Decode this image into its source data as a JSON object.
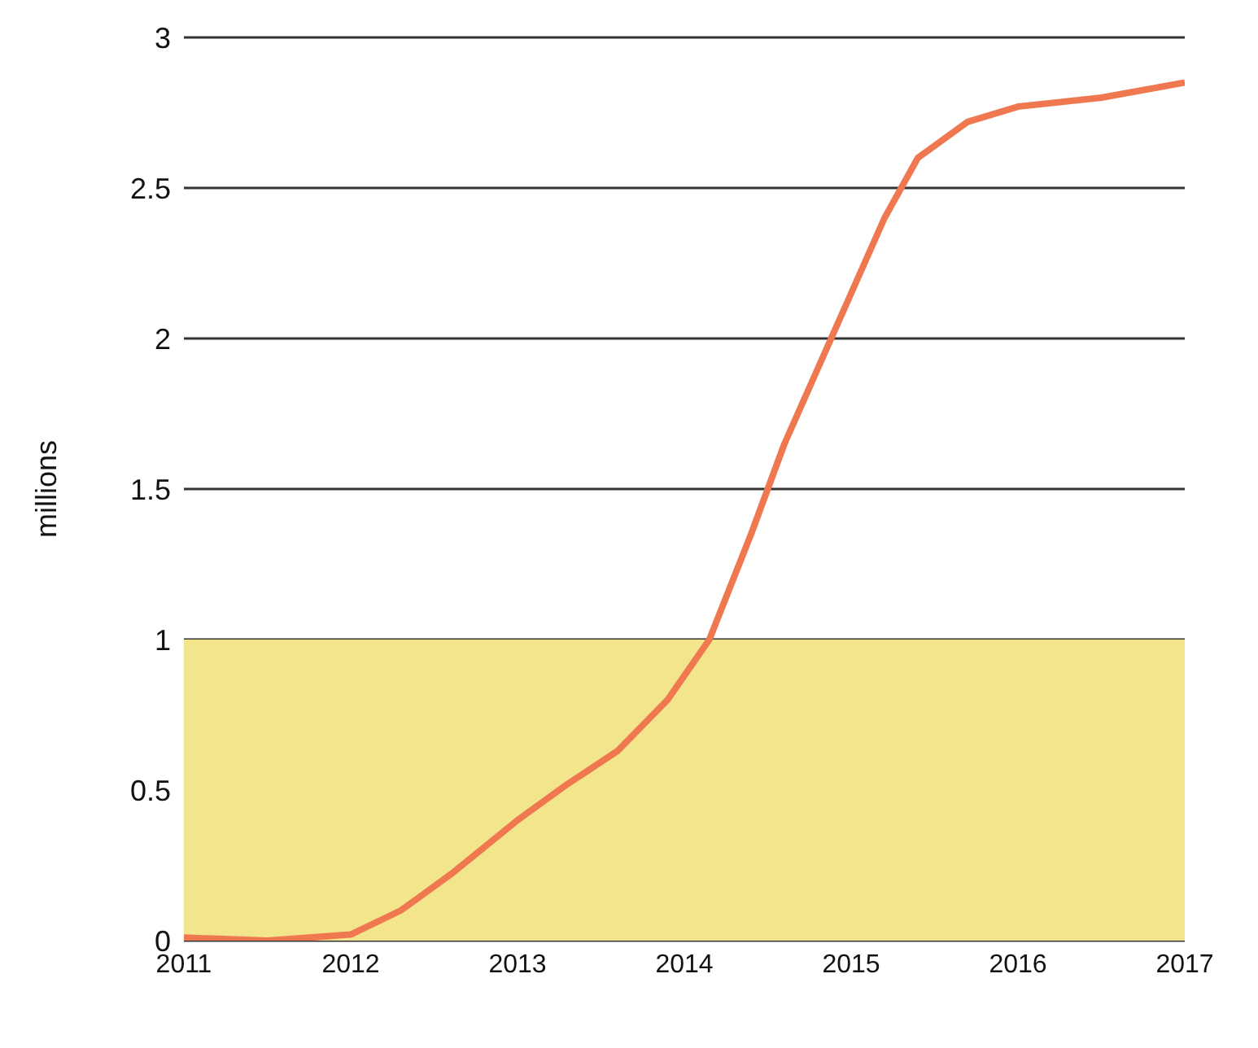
{
  "chart_data": {
    "type": "line",
    "ylabel": "millions",
    "x": [
      2011,
      2011.5,
      2012,
      2012.3,
      2012.6,
      2013,
      2013.3,
      2013.6,
      2013.9,
      2014.15,
      2014.4,
      2014.6,
      2014.8,
      2015,
      2015.2,
      2015.4,
      2015.7,
      2016,
      2016.5,
      2017
    ],
    "series": [
      {
        "color": "#f07850",
        "values": [
          0.01,
          0,
          0.02,
          0.1,
          0.22,
          0.4,
          0.52,
          0.63,
          0.8,
          1,
          1.35,
          1.65,
          1.9,
          2.15,
          2.4,
          2.6,
          2.72,
          2.77,
          2.8,
          2.85
        ]
      }
    ],
    "xlim": [
      2011,
      2017
    ],
    "xticks": [
      2011,
      2012,
      2013,
      2014,
      2015,
      2016,
      2017
    ],
    "ylim": [
      0,
      3
    ],
    "yticks": [
      0,
      {
        "value": 0.5,
        "label": "0.5"
      },
      1,
      {
        "value": 1.5,
        "label": "1.5"
      },
      2,
      {
        "value": 2.5,
        "label": "2.5"
      },
      3
    ],
    "bands": [
      {
        "axis": "y",
        "from": 0,
        "to": 1,
        "color": "#f3e58c"
      }
    ],
    "grid": "y",
    "legend": false,
    "marker": "none",
    "line_style": "solid"
  }
}
